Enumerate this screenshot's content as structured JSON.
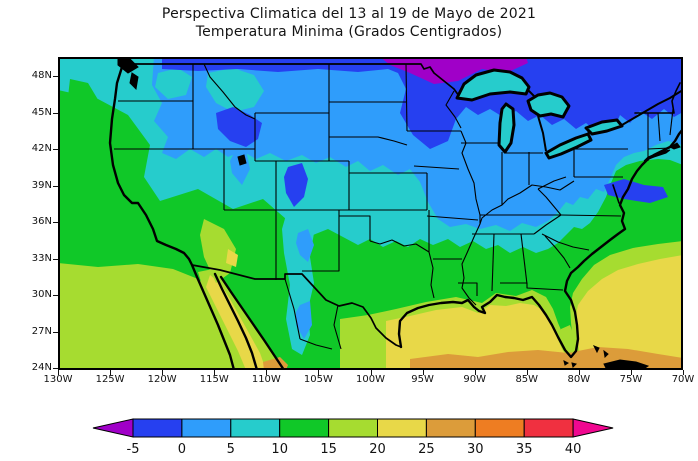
{
  "title": {
    "line1": "Perspectiva Climatica del 13 al 19 de Mayo de 2021",
    "line2": "Temperatura Minima (Grados Centigrados)"
  },
  "map": {
    "lat_labels": [
      "48N",
      "45N",
      "42N",
      "39N",
      "36N",
      "33N",
      "30N",
      "27N",
      "24N"
    ],
    "lon_labels": [
      "130W",
      "125W",
      "120W",
      "115W",
      "110W",
      "105W",
      "100W",
      "95W",
      "90W",
      "85W",
      "80W",
      "75W",
      "70W"
    ]
  },
  "palette": {
    "below_m5": "#A000C8",
    "m5_0": "#2640F0",
    "p0_5": "#2F9DFB",
    "p5_10": "#26CCCC",
    "p10_15": "#10C828",
    "p15_20": "#A6DC30",
    "p20_25": "#E8D848",
    "p25_30": "#DC9C3A",
    "p30_35": "#EE7D22",
    "p35_40": "#F03040",
    "above_40": "#F00890"
  },
  "colorbar": {
    "tick_labels": [
      "-5",
      "0",
      "5",
      "10",
      "15",
      "20",
      "25",
      "30",
      "35",
      "40"
    ],
    "arrow_left": {
      "label": "below -5",
      "color": "#A000C8"
    },
    "arrow_right": {
      "label": "above 40",
      "color": "#F00890"
    },
    "segments": [
      {
        "label": "-5 to 0",
        "color": "#2640F0"
      },
      {
        "label": "0 to 5",
        "color": "#2F9DFB"
      },
      {
        "label": "5 to 10",
        "color": "#26CCCC"
      },
      {
        "label": "10 to 15",
        "color": "#10C828"
      },
      {
        "label": "15 to 20",
        "color": "#A6DC30"
      },
      {
        "label": "20 to 25",
        "color": "#E8D848"
      },
      {
        "label": "25 to 30",
        "color": "#DC9C3A"
      },
      {
        "label": "30 to 35",
        "color": "#EE7D22"
      },
      {
        "label": "35 to 40",
        "color": "#F03040"
      }
    ]
  }
}
